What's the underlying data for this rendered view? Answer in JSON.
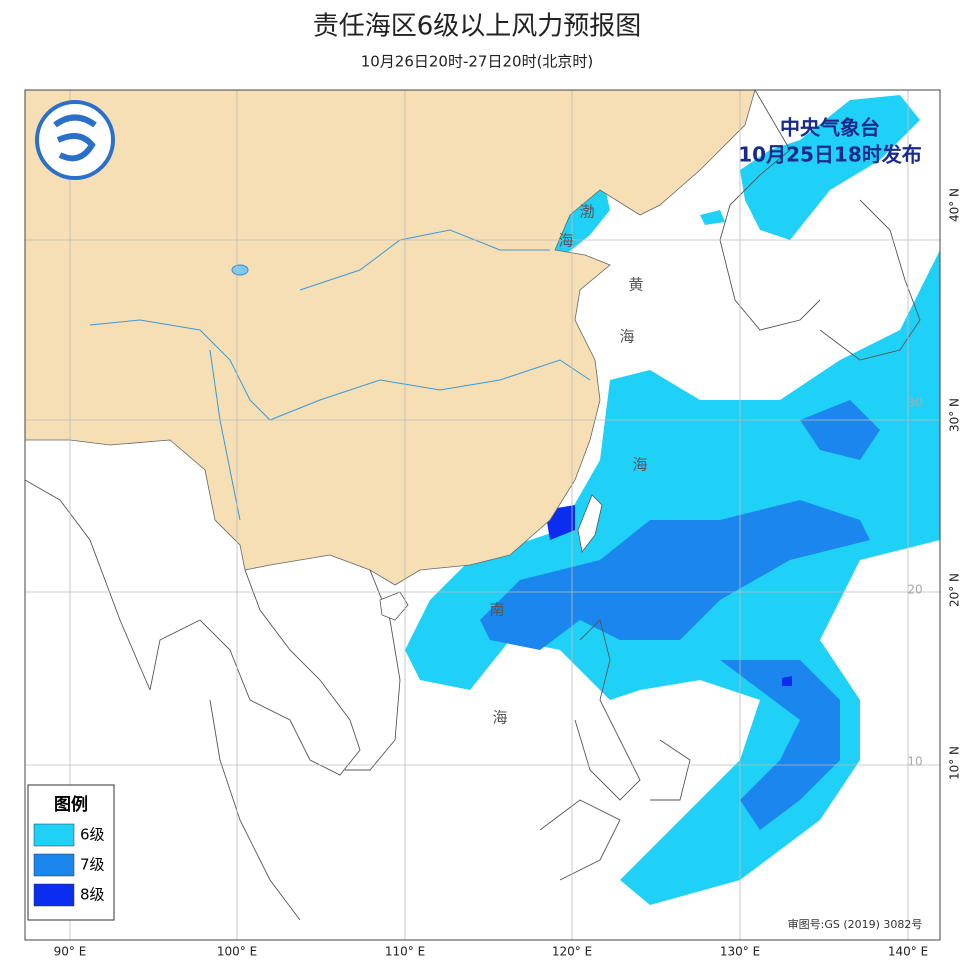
{
  "header": {
    "title": "责任海区6级以上风力预报图",
    "subtitle": "10月26日20时-27日20时(北京时)"
  },
  "issuer": {
    "name": "中央气象台",
    "time": "10月25日18时发布"
  },
  "legend": {
    "title": "图例",
    "items": [
      {
        "label": "6级",
        "color": "#1fd1f6"
      },
      {
        "label": "7级",
        "color": "#1b86ee"
      },
      {
        "label": "8级",
        "color": "#0a2df0"
      }
    ]
  },
  "sea_labels": [
    "渤",
    "海",
    "黄",
    "海",
    "海",
    "南",
    "海"
  ],
  "lon_labels": [
    "90° E",
    "100° E",
    "110° E",
    "120° E",
    "130° E",
    "140° E"
  ],
  "lat_labels": [
    "40° N",
    "30° N",
    "20° N",
    "10° N"
  ],
  "grid_labels": [
    "30",
    "20",
    "10"
  ],
  "approval": "审图号:GS (2019) 3082号"
}
